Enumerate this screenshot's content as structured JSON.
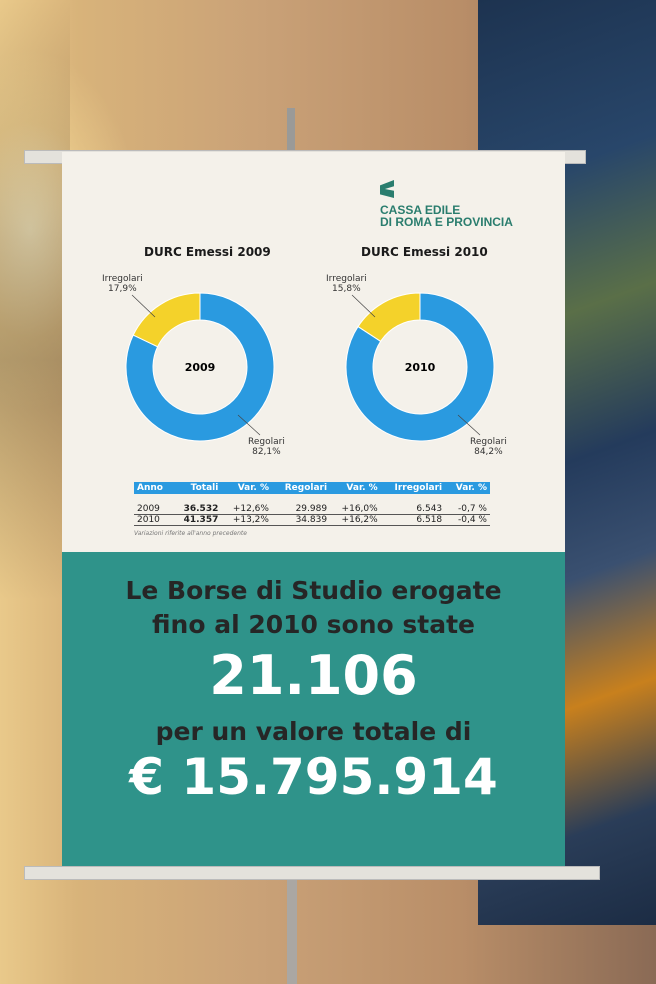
{
  "logo": {
    "line1": "CASSA EDILE",
    "line2": "DI ROMA E PROVINCIA"
  },
  "charts": [
    {
      "title": "DURC Emessi 2009",
      "center": "2009",
      "irregolari_label": "Irregolari",
      "irregolari_value": "17,9%",
      "regolari_label": "Regolari",
      "regolari_value": "82,1%",
      "irregolari": 17.9,
      "regolari": 82.1
    },
    {
      "title": "DURC Emessi 2010",
      "center": "2010",
      "irregolari_label": "Irregolari",
      "irregolari_value": "15,8%",
      "regolari_label": "Regolari",
      "regolari_value": "84,2%",
      "irregolari": 15.8,
      "regolari": 84.2
    }
  ],
  "colors": {
    "regolari": "#2a9ae0",
    "irregolari": "#f4d22a",
    "teal": "#2f938a"
  },
  "table": {
    "headers": [
      "Anno",
      "Totali",
      "Var. %",
      "Regolari",
      "Var. %",
      "Irregolari",
      "Var. %"
    ],
    "rows": [
      [
        "2009",
        "36.532",
        "+12,6%",
        "29.989",
        "+16,0%",
        "6.543",
        "-0,7 %"
      ],
      [
        "2010",
        "41.357",
        "+13,2%",
        "34.839",
        "+16,2%",
        "6.518",
        "-0,4 %"
      ]
    ],
    "note": "Variazioni riferite all'anno precedente"
  },
  "banner": {
    "line1": "Le Borse di Studio erogate",
    "line2": "fino al 2010 sono state",
    "count": "21.106",
    "line3": "per un valore totale di",
    "amount": "€ 15.795.914"
  }
}
